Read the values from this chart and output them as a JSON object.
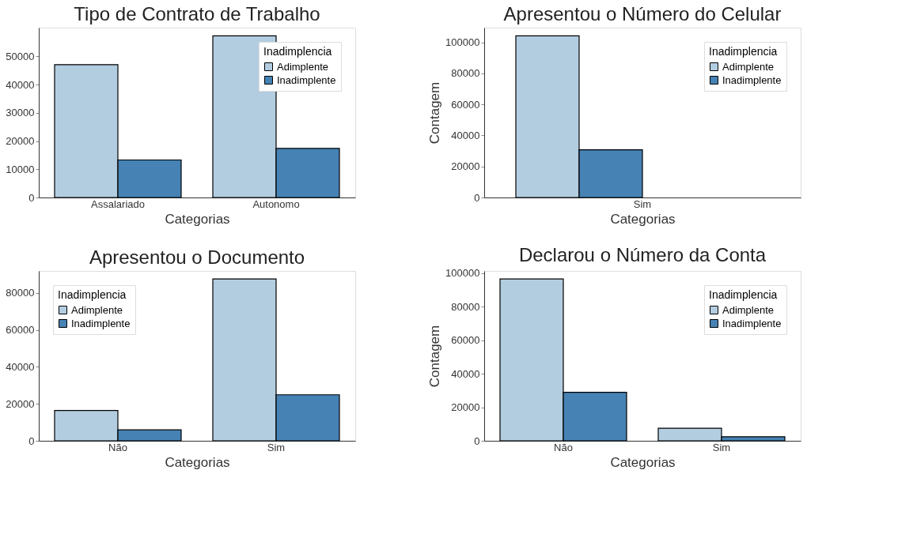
{
  "chart_data": [
    {
      "type": "bar",
      "title": "Tipo de Contrato de Trabalho",
      "xlabel": "Categorias",
      "legend_title": "Inadimplencia",
      "legend": "top right",
      "grid": false,
      "categories": [
        "Assalariado",
        "Autonomo"
      ],
      "series": [
        {
          "name": "Adimplente",
          "color": "#b3cde0",
          "values": [
            47100,
            57300
          ]
        },
        {
          "name": "Inadimplente",
          "color": "#4682b4",
          "values": [
            13300,
            17400
          ]
        }
      ],
      "ylim": [
        0,
        60200
      ],
      "yticks": [
        0,
        10000,
        20000,
        30000,
        40000,
        50000
      ]
    },
    {
      "type": "bar",
      "title": "Apresentou o Número do Celular",
      "xlabel": "Categorias",
      "ylabel": "Contagem",
      "legend_title": "Inadimplencia",
      "legend": "top right",
      "grid": false,
      "categories": [
        "Sim"
      ],
      "series": [
        {
          "name": "Adimplente",
          "color": "#b3cde0",
          "values": [
            104200
          ]
        },
        {
          "name": "Inadimplente",
          "color": "#4682b4",
          "values": [
            30800
          ]
        }
      ],
      "ylim": [
        0,
        109500
      ],
      "yticks": [
        0,
        20000,
        40000,
        60000,
        80000,
        100000
      ]
    },
    {
      "type": "bar",
      "title": "Apresentou o Documento",
      "xlabel": "Categorias",
      "legend_title": "Inadimplencia",
      "legend": "top left",
      "grid": false,
      "categories": [
        "Não",
        "Sim"
      ],
      "series": [
        {
          "name": "Adimplente",
          "color": "#b3cde0",
          "values": [
            16400,
            87600
          ]
        },
        {
          "name": "Inadimplente",
          "color": "#4682b4",
          "values": [
            5900,
            24900
          ]
        }
      ],
      "ylim": [
        0,
        91900
      ],
      "yticks": [
        0,
        20000,
        40000,
        60000,
        80000
      ]
    },
    {
      "type": "bar",
      "title": "Declarou o Número da Conta",
      "xlabel": "Categorias",
      "ylabel": "Contagem",
      "legend_title": "Inadimplencia",
      "legend": "top right",
      "grid": false,
      "categories": [
        "Não",
        "Sim"
      ],
      "series": [
        {
          "name": "Adimplente",
          "color": "#b3cde0",
          "values": [
            96600,
            7500
          ]
        },
        {
          "name": "Inadimplente",
          "color": "#4682b4",
          "values": [
            28900,
            2400
          ]
        }
      ],
      "ylim": [
        0,
        101400
      ],
      "yticks": [
        0,
        20000,
        40000,
        60000,
        80000,
        100000
      ]
    }
  ]
}
